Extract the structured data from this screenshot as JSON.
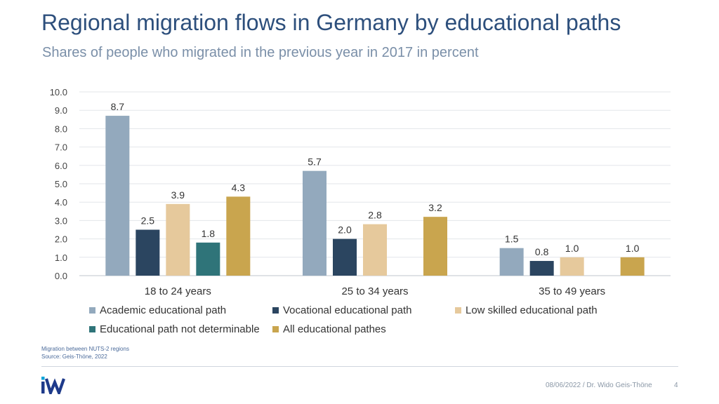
{
  "title": "Regional migration flows in Germany by educational paths",
  "subtitle": "Shares of people who migrated in the previous year in 2017 in percent",
  "footnote": {
    "line1": "Migration between NUTS-2 regions",
    "line2": "Source: Geis-Thöne, 2022"
  },
  "footer": {
    "text": "08/06/2022 / Dr. Wido Geis-Thöne",
    "page": "4",
    "logo": "IW"
  },
  "colors": {
    "title": "#2d4f7c",
    "accent": "#00a3d9"
  },
  "chart_data": {
    "type": "bar",
    "categories": [
      "18 to 24 years",
      "25 to 34 years",
      "35 to 49 years"
    ],
    "ylim": [
      0,
      10
    ],
    "yticks": [
      "0.0",
      "1.0",
      "2.0",
      "3.0",
      "4.0",
      "5.0",
      "6.0",
      "7.0",
      "8.0",
      "9.0",
      "10.0"
    ],
    "grid": true,
    "legend_position": "bottom",
    "series": [
      {
        "name": "Academic educational path",
        "color": "#93a9bd",
        "values": [
          8.7,
          5.7,
          1.5
        ],
        "labels": [
          "8.7",
          "5.7",
          "1.5"
        ]
      },
      {
        "name": "Vocational educational path",
        "color": "#2b4560",
        "values": [
          2.5,
          2.0,
          0.8
        ],
        "labels": [
          "2.5",
          "2.0",
          "0.8"
        ]
      },
      {
        "name": "Low skilled educational path",
        "color": "#e6c99c",
        "values": [
          3.9,
          2.8,
          1.0
        ],
        "labels": [
          "3.9",
          "2.8",
          "1.0"
        ]
      },
      {
        "name": "Educational path not determinable",
        "color": "#2f7479",
        "values": [
          1.8,
          null,
          null
        ],
        "labels": [
          "1.8",
          "",
          ""
        ]
      },
      {
        "name": "All educational pathes",
        "color": "#c9a54e",
        "values": [
          4.3,
          3.2,
          1.0
        ],
        "labels": [
          "4.3",
          "3.2",
          "1.0"
        ]
      }
    ]
  }
}
